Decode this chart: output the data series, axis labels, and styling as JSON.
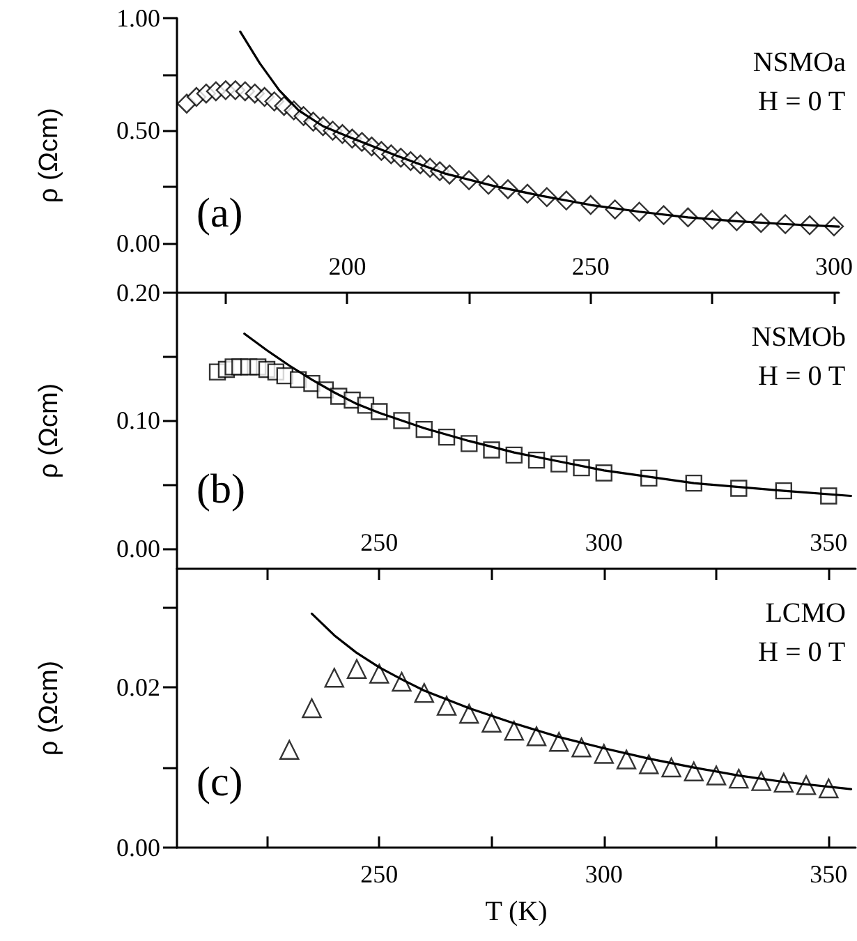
{
  "chart_data": [
    {
      "type": "scatter",
      "ylabel": "ρ (Ωcm)",
      "annotations": [
        "NSMOa",
        "H = 0 T",
        "(a)"
      ],
      "xlim": [
        165,
        301
      ],
      "xticks": [
        {
          "value": 175,
          "label": null
        },
        200,
        {
          "value": 225,
          "label": null
        },
        250,
        {
          "value": 275,
          "label": null
        },
        300
      ],
      "ylim": [
        -0.22,
        1.0
      ],
      "yticks": [
        {
          "value": 0,
          "label": "0.00"
        },
        {
          "value": 0.25,
          "label": null
        },
        {
          "value": 0.5,
          "label": "0.50"
        },
        {
          "value": 0.75,
          "label": null
        },
        {
          "value": 1.0,
          "label": "1.00"
        }
      ],
      "series": [
        {
          "marker": "diamond",
          "color": "#000000",
          "x": [
            167,
            169,
            171,
            173,
            175,
            177,
            179,
            181,
            183,
            185,
            187,
            189,
            191,
            193,
            195,
            197,
            199,
            201,
            203,
            205,
            207,
            209,
            211,
            213,
            215,
            217,
            219,
            221,
            225,
            229,
            233,
            237,
            241,
            245,
            250,
            255,
            260,
            265,
            270,
            275,
            280,
            285,
            290,
            295,
            300
          ],
          "values": [
            0.62,
            0.65,
            0.665,
            0.675,
            0.68,
            0.68,
            0.675,
            0.665,
            0.65,
            0.63,
            0.61,
            0.59,
            0.565,
            0.54,
            0.52,
            0.5,
            0.485,
            0.465,
            0.45,
            0.43,
            0.41,
            0.395,
            0.38,
            0.365,
            0.35,
            0.335,
            0.32,
            0.305,
            0.28,
            0.26,
            0.24,
            0.22,
            0.205,
            0.19,
            0.17,
            0.15,
            0.14,
            0.125,
            0.115,
            0.105,
            0.098,
            0.09,
            0.085,
            0.08,
            0.075
          ]
        },
        {
          "type": "line",
          "marker": "none",
          "color": "#000000",
          "x": [
            178,
            182,
            186,
            190,
            195,
            200,
            210,
            220,
            230,
            240,
            250,
            260,
            270,
            280,
            290,
            301
          ],
          "values": [
            0.94,
            0.8,
            0.68,
            0.59,
            0.52,
            0.475,
            0.39,
            0.31,
            0.255,
            0.21,
            0.17,
            0.14,
            0.115,
            0.098,
            0.085,
            0.074
          ]
        }
      ]
    },
    {
      "type": "scatter",
      "ylabel": "ρ (Ωcm)",
      "annotations": [
        "NSMOb",
        "H = 0 T",
        "(b)"
      ],
      "xlim": [
        205,
        356
      ],
      "xticks": [
        {
          "value": 225,
          "label": null
        },
        250,
        {
          "value": 275,
          "label": null
        },
        300,
        {
          "value": 325,
          "label": null
        },
        350
      ],
      "ylim": [
        -0.016,
        0.2
      ],
      "yticks": [
        {
          "value": 0,
          "label": "0.00"
        },
        {
          "value": 0.05,
          "label": null
        },
        {
          "value": 0.1,
          "label": "0.10"
        },
        {
          "value": 0.15,
          "label": null
        },
        {
          "value": 0.2,
          "label": "0.20"
        }
      ],
      "series": [
        {
          "marker": "square",
          "color": "#000000",
          "x": [
            214,
            216,
            217.5,
            219,
            221,
            223,
            225,
            227,
            229,
            232,
            235,
            238,
            241,
            244,
            247,
            250,
            255,
            260,
            265,
            270,
            275,
            280,
            285,
            290,
            295,
            300,
            310,
            320,
            330,
            340,
            350
          ],
          "values": [
            0.138,
            0.14,
            0.142,
            0.142,
            0.142,
            0.142,
            0.14,
            0.138,
            0.135,
            0.132,
            0.129,
            0.124,
            0.119,
            0.116,
            0.112,
            0.107,
            0.1,
            0.093,
            0.087,
            0.082,
            0.077,
            0.073,
            0.069,
            0.066,
            0.063,
            0.059,
            0.055,
            0.051,
            0.047,
            0.045,
            0.041
          ]
        },
        {
          "type": "line",
          "marker": "none",
          "color": "#000000",
          "x": [
            220,
            225,
            230,
            235,
            240,
            245,
            250,
            260,
            270,
            280,
            290,
            300,
            320,
            340,
            355
          ],
          "values": [
            0.168,
            0.155,
            0.143,
            0.132,
            0.122,
            0.113,
            0.106,
            0.094,
            0.084,
            0.075,
            0.068,
            0.061,
            0.051,
            0.045,
            0.041
          ]
        }
      ]
    },
    {
      "type": "scatter",
      "xlabel": "T (K)",
      "ylabel": "ρ (Ωcm)",
      "annotations": [
        "LCMO",
        "H = 0 T",
        "(c)"
      ],
      "xlim": [
        205,
        356
      ],
      "xticks": [
        {
          "value": 225,
          "label": null
        },
        250,
        {
          "value": 275,
          "label": null
        },
        300,
        {
          "value": 325,
          "label": null
        },
        350
      ],
      "ylim": [
        0,
        0.0348
      ],
      "yticks": [
        {
          "value": 0,
          "label": "0.00"
        },
        {
          "value": 0.01,
          "label": null
        },
        0.02,
        {
          "value": 0.03,
          "label": null
        }
      ],
      "series": [
        {
          "marker": "triangle",
          "color": "#000000",
          "x": [
            230,
            235,
            240,
            245,
            250,
            255,
            260,
            265,
            270,
            275,
            280,
            285,
            290,
            295,
            300,
            305,
            310,
            315,
            320,
            325,
            330,
            335,
            340,
            345,
            350
          ],
          "values": [
            0.0122,
            0.0174,
            0.0212,
            0.0223,
            0.0217,
            0.0207,
            0.0193,
            0.0177,
            0.0167,
            0.0156,
            0.0146,
            0.0139,
            0.0132,
            0.0125,
            0.0117,
            0.011,
            0.0104,
            0.01,
            0.0095,
            0.009,
            0.0086,
            0.0083,
            0.0081,
            0.0078,
            0.0074
          ]
        },
        {
          "type": "line",
          "marker": "none",
          "color": "#000000",
          "x": [
            235,
            240,
            245,
            250,
            255,
            260,
            270,
            280,
            290,
            300,
            310,
            320,
            330,
            340,
            355
          ],
          "values": [
            0.0292,
            0.0265,
            0.0243,
            0.0225,
            0.021,
            0.0196,
            0.0174,
            0.0155,
            0.0138,
            0.0124,
            0.0111,
            0.01,
            0.009,
            0.0082,
            0.0073
          ]
        }
      ]
    }
  ]
}
